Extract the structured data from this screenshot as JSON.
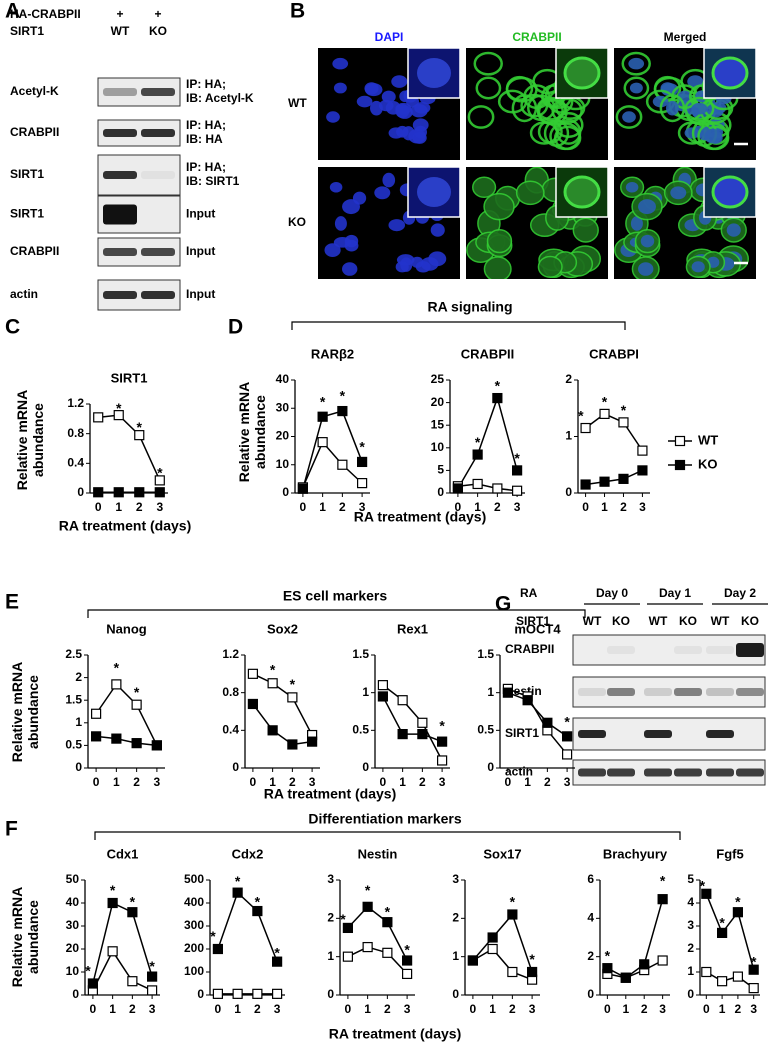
{
  "panel_labels": [
    "A",
    "B",
    "C",
    "D",
    "E",
    "F",
    "G"
  ],
  "panel_a": {
    "header": [
      {
        "label": "HA-CRABPII",
        "lanes": [
          "+",
          "+"
        ]
      },
      {
        "label": "SIRT1",
        "lanes": [
          "WT",
          "KO"
        ]
      }
    ],
    "blots": [
      {
        "label": "Acetyl-K",
        "note": [
          "IP: HA;",
          "IB: Acetyl-K"
        ]
      },
      {
        "label": "CRABPII",
        "note": [
          "IP: HA;",
          "IB: HA"
        ]
      },
      {
        "label": "SIRT1",
        "note": [
          "IP: HA;",
          "IB: SIRT1"
        ]
      },
      {
        "label": "SIRT1",
        "note": [
          "Input"
        ]
      },
      {
        "label": "CRABPII",
        "note": [
          "Input"
        ]
      },
      {
        "label": "actin",
        "note": [
          "Input"
        ]
      }
    ]
  },
  "panel_b": {
    "channels": [
      "DAPI",
      "CRABPII",
      "Merged"
    ],
    "rows": [
      "WT",
      "KO"
    ]
  },
  "panel_g": {
    "treatment_label": "RA",
    "days": [
      "Day 0",
      "Day 1",
      "Day 2"
    ],
    "genotype_label": "SIRT1",
    "lanes": [
      "WT",
      "KO"
    ],
    "blots": [
      "CRABPII",
      "Nestin",
      "SIRT1",
      "actin"
    ]
  },
  "groups": [
    "RA signaling",
    "ES cell markers",
    "Differentiation markers"
  ],
  "chart_data": [
    {
      "type": "line",
      "title": "SIRT1",
      "ylabel": "Relative mRNA abundance",
      "xlabel": "RA treatment (days)",
      "x": [
        0,
        1,
        2,
        3
      ],
      "xlim": [
        -0.4,
        3.4
      ],
      "xticks": [
        0,
        1,
        2,
        3
      ],
      "ylim": [
        0,
        1.2
      ],
      "yticks": [
        0,
        0.4,
        0.8,
        1.2
      ],
      "series": [
        {
          "color": "#ffffff",
          "values": [
            1.02,
            1.05,
            0.78,
            0.17
          ]
        },
        {
          "color": "#000000",
          "values": [
            0.01,
            0.01,
            0.01,
            0.01
          ]
        }
      ],
      "annotations": [
        {
          "x": 1,
          "y": 1.13,
          "text": "*"
        },
        {
          "x": 2,
          "y": 0.87,
          "text": "*"
        },
        {
          "x": 3,
          "y": 0.26,
          "text": "*"
        }
      ]
    },
    {
      "type": "line",
      "title": "RARβ2",
      "ylabel": "Relative mRNA abundance",
      "x": [
        0,
        1,
        2,
        3
      ],
      "xlim": [
        -0.4,
        3.4
      ],
      "xticks": [
        0,
        1,
        2,
        3
      ],
      "ylim": [
        0,
        40
      ],
      "yticks": [
        0,
        10,
        20,
        30,
        40
      ],
      "series": [
        {
          "color": "#ffffff",
          "values": [
            2,
            18,
            10,
            3.5
          ]
        },
        {
          "color": "#000000",
          "values": [
            1.5,
            27,
            29,
            11
          ]
        }
      ],
      "annotations": [
        {
          "x": 1,
          "y": 32,
          "text": "*"
        },
        {
          "x": 2,
          "y": 34,
          "text": "*"
        },
        {
          "x": 3,
          "y": 16,
          "text": "*"
        }
      ]
    },
    {
      "type": "line",
      "title": "CRABPII",
      "xlabel": "RA treatment (days)",
      "x": [
        0,
        1,
        2,
        3
      ],
      "xlim": [
        -0.4,
        3.4
      ],
      "xticks": [
        0,
        1,
        2,
        3
      ],
      "ylim": [
        0,
        25
      ],
      "yticks": [
        0,
        5,
        10,
        15,
        20,
        25
      ],
      "series": [
        {
          "color": "#ffffff",
          "values": [
            1.5,
            2,
            1,
            0.5
          ]
        },
        {
          "color": "#000000",
          "values": [
            1,
            8.5,
            21,
            5
          ]
        }
      ],
      "annotations": [
        {
          "x": 1,
          "y": 11,
          "text": "*"
        },
        {
          "x": 2,
          "y": 23.5,
          "text": "*"
        },
        {
          "x": 3,
          "y": 7.5,
          "text": "*"
        }
      ]
    },
    {
      "type": "line",
      "title": "CRABPI",
      "x": [
        0,
        1,
        2,
        3
      ],
      "xlim": [
        -0.4,
        3.4
      ],
      "xticks": [
        0,
        1,
        2,
        3
      ],
      "ylim": [
        0,
        2
      ],
      "yticks": [
        0,
        1,
        2
      ],
      "series": [
        {
          "name": "WT",
          "color": "#ffffff",
          "values": [
            1.15,
            1.4,
            1.25,
            0.75
          ]
        },
        {
          "name": "KO",
          "color": "#000000",
          "values": [
            0.15,
            0.2,
            0.25,
            0.4
          ]
        }
      ],
      "annotations": [
        {
          "x": -0.25,
          "y": 1.35,
          "text": "*"
        },
        {
          "x": 1,
          "y": 1.6,
          "text": "*"
        },
        {
          "x": 2,
          "y": 1.45,
          "text": "*"
        }
      ]
    },
    {
      "type": "line",
      "title": "Nanog",
      "ylabel": "Relative mRNA abundance",
      "xlabel": "RA treatment (days)",
      "x": [
        0,
        1,
        2,
        3
      ],
      "xlim": [
        -0.4,
        3.4
      ],
      "xticks": [
        0,
        1,
        2,
        3
      ],
      "ylim": [
        0,
        2.5
      ],
      "yticks": [
        0,
        0.5,
        1,
        1.5,
        2,
        2.5
      ],
      "series": [
        {
          "color": "#ffffff",
          "values": [
            1.2,
            1.85,
            1.4,
            0.5
          ]
        },
        {
          "color": "#000000",
          "values": [
            0.7,
            0.65,
            0.55,
            0.5
          ]
        }
      ],
      "annotations": [
        {
          "x": 1,
          "y": 2.2,
          "text": "*"
        },
        {
          "x": 2,
          "y": 1.65,
          "text": "*"
        }
      ]
    },
    {
      "type": "line",
      "title": "Sox2",
      "x": [
        0,
        1,
        2,
        3
      ],
      "xlim": [
        -0.4,
        3.4
      ],
      "xticks": [
        0,
        1,
        2,
        3
      ],
      "ylim": [
        0,
        1.2
      ],
      "yticks": [
        0,
        0.4,
        0.8,
        1.2
      ],
      "series": [
        {
          "color": "#ffffff",
          "values": [
            1.0,
            0.9,
            0.75,
            0.35
          ]
        },
        {
          "color": "#000000",
          "values": [
            0.68,
            0.4,
            0.25,
            0.28
          ]
        }
      ],
      "annotations": [
        {
          "x": 1,
          "y": 1.03,
          "text": "*"
        },
        {
          "x": 2,
          "y": 0.88,
          "text": "*"
        }
      ]
    },
    {
      "type": "line",
      "title": "Rex1",
      "x": [
        0,
        1,
        2,
        3
      ],
      "xlim": [
        -0.4,
        3.4
      ],
      "xticks": [
        0,
        1,
        2,
        3
      ],
      "ylim": [
        0,
        1.5
      ],
      "yticks": [
        0,
        0.5,
        1,
        1.5
      ],
      "series": [
        {
          "color": "#ffffff",
          "values": [
            1.1,
            0.9,
            0.6,
            0.1
          ]
        },
        {
          "color": "#000000",
          "values": [
            0.95,
            0.45,
            0.45,
            0.35
          ]
        }
      ],
      "annotations": [
        {
          "x": 3,
          "y": 0.55,
          "text": "*"
        }
      ]
    },
    {
      "type": "line",
      "title": "mOCT4",
      "x": [
        0,
        1,
        2,
        3
      ],
      "xlim": [
        -0.4,
        3.4
      ],
      "xticks": [
        0,
        1,
        2,
        3
      ],
      "ylim": [
        0,
        1.5
      ],
      "yticks": [
        0,
        0.5,
        1,
        1.5
      ],
      "series": [
        {
          "color": "#ffffff",
          "values": [
            1.05,
            0.95,
            0.5,
            0.18
          ]
        },
        {
          "color": "#000000",
          "values": [
            1.0,
            0.9,
            0.6,
            0.42
          ]
        }
      ],
      "annotations": [
        {
          "x": 3,
          "y": 0.6,
          "text": "*"
        }
      ]
    },
    {
      "type": "line",
      "title": "Cdx1",
      "ylabel": "Relative mRNA abundance",
      "xlabel": "RA treatment (days)",
      "x": [
        0,
        1,
        2,
        3
      ],
      "xlim": [
        -0.4,
        3.4
      ],
      "xticks": [
        0,
        1,
        2,
        3
      ],
      "ylim": [
        0,
        50
      ],
      "yticks": [
        0,
        10,
        20,
        30,
        40,
        50
      ],
      "series": [
        {
          "color": "#ffffff",
          "values": [
            2,
            19,
            6,
            2
          ]
        },
        {
          "color": "#000000",
          "values": [
            5,
            40,
            36,
            8
          ]
        }
      ],
      "annotations": [
        {
          "x": -0.25,
          "y": 10,
          "text": "*"
        },
        {
          "x": 1,
          "y": 45,
          "text": "*"
        },
        {
          "x": 2,
          "y": 40,
          "text": "*"
        },
        {
          "x": 3,
          "y": 12,
          "text": "*"
        }
      ]
    },
    {
      "type": "line",
      "title": "Cdx2",
      "x": [
        0,
        1,
        2,
        3
      ],
      "xlim": [
        -0.4,
        3.4
      ],
      "xticks": [
        0,
        1,
        2,
        3
      ],
      "ylim": [
        0,
        500
      ],
      "yticks": [
        0,
        100,
        200,
        300,
        400,
        500
      ],
      "series": [
        {
          "color": "#ffffff",
          "values": [
            5,
            5,
            5,
            5
          ]
        },
        {
          "color": "#000000",
          "values": [
            200,
            445,
            365,
            145
          ]
        }
      ],
      "annotations": [
        {
          "x": -0.25,
          "y": 250,
          "text": "*"
        },
        {
          "x": 1,
          "y": 490,
          "text": "*"
        },
        {
          "x": 2,
          "y": 400,
          "text": "*"
        },
        {
          "x": 3,
          "y": 180,
          "text": "*"
        }
      ]
    },
    {
      "type": "line",
      "title": "Nestin",
      "x": [
        0,
        1,
        2,
        3
      ],
      "xlim": [
        -0.4,
        3.4
      ],
      "xticks": [
        0,
        1,
        2,
        3
      ],
      "ylim": [
        0,
        3
      ],
      "yticks": [
        0,
        1,
        2,
        3
      ],
      "series": [
        {
          "color": "#ffffff",
          "values": [
            1,
            1.25,
            1.1,
            0.55
          ]
        },
        {
          "color": "#000000",
          "values": [
            1.75,
            2.3,
            1.9,
            0.9
          ]
        }
      ],
      "annotations": [
        {
          "x": -0.25,
          "y": 1.95,
          "text": "*"
        },
        {
          "x": 1,
          "y": 2.7,
          "text": "*"
        },
        {
          "x": 2,
          "y": 2.15,
          "text": "*"
        },
        {
          "x": 3,
          "y": 1.15,
          "text": "*"
        }
      ]
    },
    {
      "type": "line",
      "title": "Sox17",
      "x": [
        0,
        1,
        2,
        3
      ],
      "xlim": [
        -0.4,
        3.4
      ],
      "xticks": [
        0,
        1,
        2,
        3
      ],
      "ylim": [
        0,
        3
      ],
      "yticks": [
        0,
        1,
        2,
        3
      ],
      "series": [
        {
          "color": "#ffffff",
          "values": [
            0.9,
            1.2,
            0.6,
            0.4
          ]
        },
        {
          "color": "#000000",
          "values": [
            0.9,
            1.5,
            2.1,
            0.6
          ]
        }
      ],
      "annotations": [
        {
          "x": 2,
          "y": 2.4,
          "text": "*"
        },
        {
          "x": 3,
          "y": 0.9,
          "text": "*"
        }
      ]
    },
    {
      "type": "line",
      "title": "Brachyury",
      "x": [
        0,
        1,
        2,
        3
      ],
      "xlim": [
        -0.4,
        3.4
      ],
      "xticks": [
        0,
        1,
        2,
        3
      ],
      "ylim": [
        0,
        6
      ],
      "yticks": [
        0,
        2,
        4,
        6
      ],
      "series": [
        {
          "color": "#ffffff",
          "values": [
            1.1,
            0.9,
            1.3,
            1.8
          ]
        },
        {
          "color": "#000000",
          "values": [
            1.4,
            0.9,
            1.6,
            5
          ]
        }
      ],
      "annotations": [
        {
          "x": 0,
          "y": 2,
          "text": "*"
        },
        {
          "x": 3,
          "y": 5.9,
          "text": "*"
        }
      ]
    },
    {
      "type": "line",
      "title": "Fgf5",
      "x": [
        0,
        1,
        2,
        3
      ],
      "xlim": [
        -0.4,
        3.4
      ],
      "xticks": [
        0,
        1,
        2,
        3
      ],
      "ylim": [
        0,
        5
      ],
      "yticks": [
        0,
        1,
        2,
        3,
        4,
        5
      ],
      "series": [
        {
          "color": "#ffffff",
          "values": [
            1,
            0.6,
            0.8,
            0.3
          ]
        },
        {
          "color": "#000000",
          "values": [
            4.4,
            2.7,
            3.6,
            1.1
          ]
        }
      ],
      "annotations": [
        {
          "x": -0.25,
          "y": 4.7,
          "text": "*"
        },
        {
          "x": 1,
          "y": 3.1,
          "text": "*"
        },
        {
          "x": 2,
          "y": 4,
          "text": "*"
        },
        {
          "x": 3,
          "y": 1.4,
          "text": "*"
        }
      ]
    }
  ]
}
